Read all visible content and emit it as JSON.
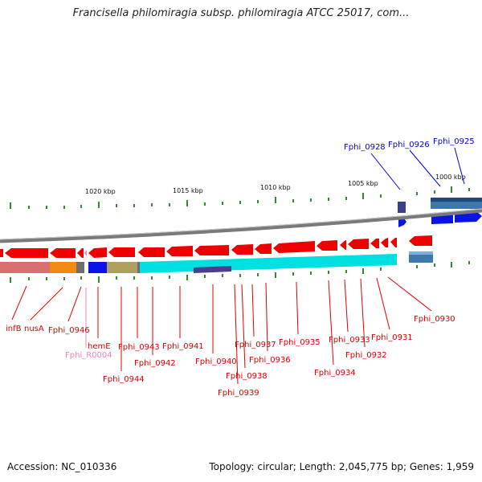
{
  "title": "Francisella philomiragia subsp. philomiragia ATCC 25017, com...",
  "footer": {
    "accession": "Accession: NC_010336",
    "summary": "Topology: circular; Length: 2,045,775 bp; Genes: 1,959"
  },
  "scale_labels": [
    "1020 kbp",
    "1015 kbp",
    "1010 kbp",
    "1005 kbp",
    "1000 kbp"
  ],
  "colors": {
    "forward_gene": "#0000ee",
    "reverse_gene": "#ee0000",
    "trna": "#ee82c0",
    "backbone": "#808080",
    "tick": "#2e8b2e",
    "cyan_feature": "#00e5e5"
  },
  "labels": {
    "blue": [
      "Fphi_0928",
      "Fphi_0926",
      "Fphi_0925"
    ],
    "red": [
      "infB",
      "nusA",
      "Fphi_0946",
      "hemE",
      "Fphi_0943",
      "Fphi_0941",
      "Fphi_0942",
      "Fphi_0944",
      "Fphi_0940",
      "Fphi_0937",
      "Fphi_0938",
      "Fphi_0939",
      "Fphi_0936",
      "Fphi_0935",
      "Fphi_0933",
      "Fphi_0934",
      "Fphi_0932",
      "Fphi_0931",
      "Fphi_0930"
    ],
    "pink": [
      "Fphi_R0004"
    ]
  }
}
